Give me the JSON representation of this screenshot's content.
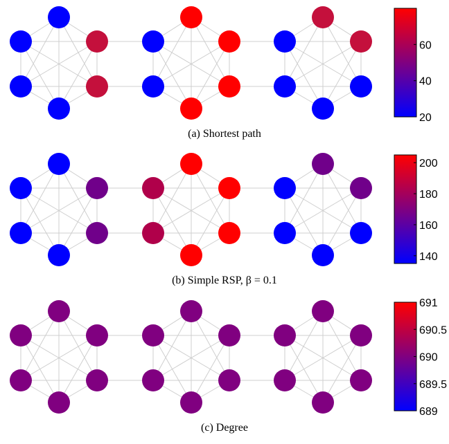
{
  "panels": [
    {
      "caption": "(a)  Shortest path",
      "colorbar": {
        "min": 20,
        "max": 80,
        "ticks": [
          "20",
          "40",
          "60"
        ]
      },
      "node_colors": {
        "left": [
          "#0000ff",
          "#0000ff",
          "#c4103c",
          "#c4103c",
          "#0000ff",
          "#0000ff",
          "#0000ff"
        ],
        "middle": [
          "#0000ff",
          "#ff0000",
          "#ff0000",
          "#ff0000",
          "#ff0000",
          "#0000ff",
          "#ff0000"
        ],
        "right": [
          "#0000ff",
          "#c4103c",
          "#c4103c",
          "#0000ff",
          "#0000ff",
          "#0000ff",
          "#0000ff"
        ]
      }
    },
    {
      "caption": "(b)  Simple RSP, β = 0.1",
      "colorbar": {
        "min": 135,
        "max": 205,
        "ticks": [
          "140",
          "160",
          "180",
          "200"
        ]
      },
      "node_colors": {
        "left": [
          "#0000ff",
          "#0000ff",
          "#70008a",
          "#70008a",
          "#0000ff",
          "#0000ff",
          "#0000ff"
        ],
        "middle": [
          "#b0004a",
          "#ff0000",
          "#ff0000",
          "#ff0000",
          "#ff0000",
          "#b0004a",
          "#ff0000"
        ],
        "right": [
          "#0000ff",
          "#70008a",
          "#70008a",
          "#0000ff",
          "#0000ff",
          "#0000ff",
          "#0000ff"
        ]
      }
    },
    {
      "caption": "(c)  Degree",
      "colorbar": {
        "min": 689,
        "max": 691,
        "ticks": [
          "689",
          "689.5",
          "690",
          "690.5",
          "691"
        ]
      },
      "node_colors": {
        "left": [
          "#800080",
          "#800080",
          "#800080",
          "#800080",
          "#800080",
          "#800080",
          "#800080"
        ],
        "middle": [
          "#800080",
          "#800080",
          "#800080",
          "#800080",
          "#800080",
          "#800080",
          "#800080"
        ],
        "right": [
          "#800080",
          "#800080",
          "#800080",
          "#800080",
          "#800080",
          "#800080",
          "#800080"
        ]
      }
    }
  ],
  "colors": {
    "low": "#0000ff",
    "high": "#ff0000",
    "edge": "#cfcfcf"
  }
}
